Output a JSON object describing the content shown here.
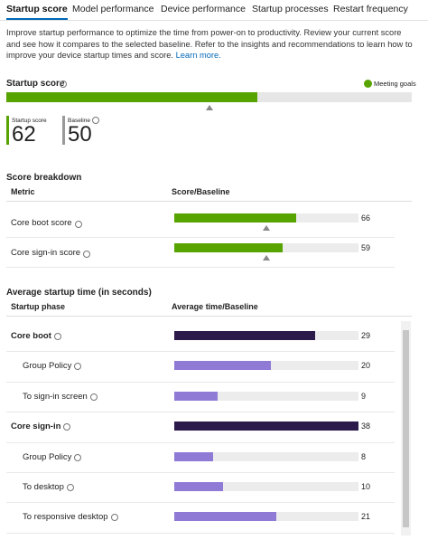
{
  "tabs": [
    "Startup score",
    "Model performance",
    "Device performance",
    "Startup processes",
    "Restart frequency"
  ],
  "active_tab": 0,
  "intro": {
    "text": "Improve startup performance to optimize the time from power-on to productivity. Review your current score and see how it compares to the selected baseline. Refer to the insights and recommendations to learn how to improve your device startup times and score.",
    "link": "Learn more."
  },
  "startup_score": {
    "title": "Startup score",
    "status": "Meeting goals",
    "value_label": "Startup score",
    "value": 62,
    "baseline_label": "Baseline",
    "baseline": 50,
    "xlim": [
      0,
      100
    ],
    "color": "#57a300"
  },
  "score_breakdown": {
    "title": "Score breakdown",
    "columns": [
      "Metric",
      "Score/Baseline"
    ],
    "xlim": [
      0,
      100
    ],
    "color": "#57a300",
    "rows": [
      {
        "label": "Core boot score",
        "value": 66,
        "baseline": 50
      },
      {
        "label": "Core sign-in score",
        "value": 59,
        "baseline": 50
      }
    ]
  },
  "startup_time": {
    "title": "Average startup time (in seconds)",
    "columns": [
      "Startup phase",
      "Average time/Baseline"
    ],
    "xlim": [
      0,
      38
    ],
    "rows": [
      {
        "label": "Core boot",
        "value": 29,
        "bold": true,
        "color": "#2b1a4a"
      },
      {
        "label": "Group Policy",
        "value": 20,
        "bold": false,
        "color": "#8f7ad6"
      },
      {
        "label": "To sign-in screen",
        "value": 9,
        "bold": false,
        "color": "#8f7ad6"
      },
      {
        "label": "Core sign-in",
        "value": 38,
        "bold": true,
        "color": "#2b1a4a"
      },
      {
        "label": "Group Policy",
        "value": 8,
        "bold": false,
        "color": "#8f7ad6"
      },
      {
        "label": "To desktop",
        "value": 10,
        "bold": false,
        "color": "#8f7ad6"
      },
      {
        "label": "To responsive desktop",
        "value": 21,
        "bold": false,
        "color": "#8f7ad6"
      }
    ]
  }
}
